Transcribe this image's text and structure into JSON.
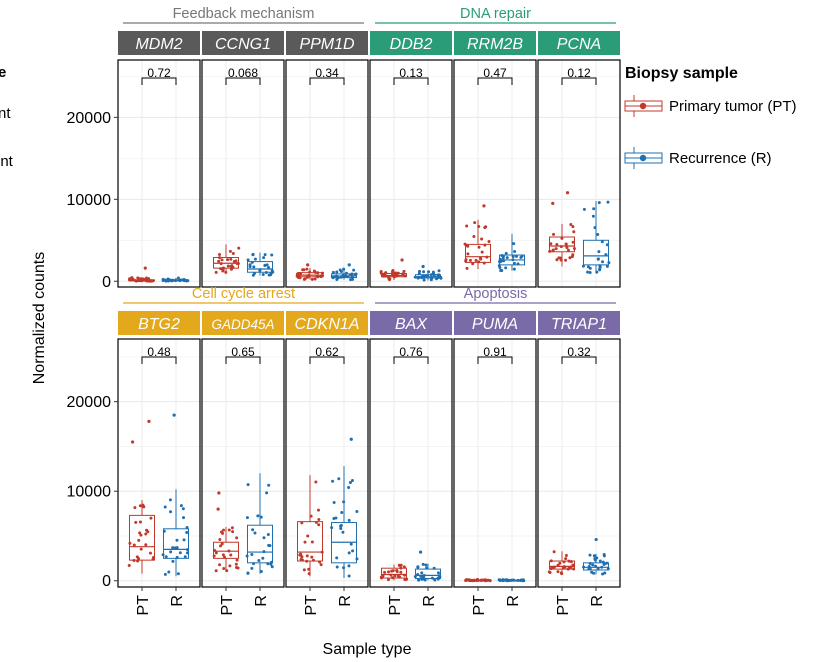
{
  "chart_data": {
    "type": "box",
    "xlabel": "Sample type",
    "ylabel": "Normalized counts",
    "ylim": [
      -700,
      27000
    ],
    "y_ticks": [
      0,
      10000,
      20000
    ],
    "y_tick_labels": [
      "0",
      "10000",
      "20000"
    ],
    "x_categories": [
      "PT",
      "R"
    ],
    "legend": {
      "title": "Biopsy sample",
      "placement": "right",
      "entries": [
        {
          "label": "Primary tumor (PT)",
          "color": "#c0392b"
        },
        {
          "label": "Recurrence (R)",
          "color": "#1f6fb0"
        }
      ]
    },
    "left_legend_fragments": [
      "e",
      "nt",
      "ent"
    ],
    "groups": [
      {
        "label": "Feedback mechanism",
        "color": "#777777",
        "row": 0,
        "first": 0,
        "last": 2
      },
      {
        "label": "DNA repair",
        "color": "#2a9c78",
        "row": 0,
        "first": 3,
        "last": 5
      },
      {
        "label": "Cell cycle arrest",
        "color": "#e3a81b",
        "row": 1,
        "first": 0,
        "last": 2
      },
      {
        "label": "Apoptosis",
        "color": "#7b6aa8",
        "row": 1,
        "first": 3,
        "last": 5
      }
    ],
    "panels": [
      {
        "gene": "MDM2",
        "color": "#5a5a5a",
        "row": 0,
        "col": 0,
        "p": "0.72",
        "PT": {
          "min": 0,
          "q1": 40,
          "median": 100,
          "q3": 170,
          "max": 500,
          "outliers": [
            1600
          ]
        },
        "R": {
          "min": 0,
          "q1": 50,
          "median": 100,
          "q3": 160,
          "max": 400,
          "outliers": []
        }
      },
      {
        "gene": "CCNG1",
        "color": "#5a5a5a",
        "row": 0,
        "col": 1,
        "p": "0.068",
        "PT": {
          "min": 1000,
          "q1": 1600,
          "median": 2200,
          "q3": 2900,
          "max": 4500,
          "outliers": []
        },
        "R": {
          "min": 700,
          "q1": 1100,
          "median": 1500,
          "q3": 2400,
          "max": 3500,
          "outliers": []
        }
      },
      {
        "gene": "PPM1D",
        "color": "#5a5a5a",
        "row": 0,
        "col": 2,
        "p": "0.34",
        "PT": {
          "min": 200,
          "q1": 550,
          "median": 750,
          "q3": 1050,
          "max": 1600,
          "outliers": [
            2000
          ]
        },
        "R": {
          "min": 200,
          "q1": 450,
          "median": 650,
          "q3": 900,
          "max": 1500,
          "outliers": [
            2000
          ]
        }
      },
      {
        "gene": "DDB2",
        "color": "#2a9c78",
        "row": 0,
        "col": 3,
        "p": "0.13",
        "PT": {
          "min": 150,
          "q1": 550,
          "median": 700,
          "q3": 950,
          "max": 1400,
          "outliers": [
            2600
          ]
        },
        "R": {
          "min": 100,
          "q1": 400,
          "median": 550,
          "q3": 800,
          "max": 1300,
          "outliers": [
            1800
          ]
        }
      },
      {
        "gene": "RRM2B",
        "color": "#2a9c78",
        "row": 0,
        "col": 4,
        "p": "0.47",
        "PT": {
          "min": 1500,
          "q1": 2300,
          "median": 3000,
          "q3": 4500,
          "max": 7500,
          "outliers": [
            9200
          ]
        },
        "R": {
          "min": 1300,
          "q1": 2000,
          "median": 2600,
          "q3": 3200,
          "max": 5800,
          "outliers": []
        }
      },
      {
        "gene": "PCNA",
        "color": "#2a9c78",
        "row": 0,
        "col": 5,
        "p": "0.12",
        "PT": {
          "min": 1800,
          "q1": 3600,
          "median": 4300,
          "q3": 5400,
          "max": 7000,
          "outliers": [
            9500,
            10800
          ]
        },
        "R": {
          "min": 1000,
          "q1": 2000,
          "median": 3100,
          "q3": 5000,
          "max": 9800,
          "outliers": []
        }
      },
      {
        "gene": "BTG2",
        "color": "#e3a81b",
        "row": 1,
        "col": 0,
        "p": "0.48",
        "PT": {
          "min": 800,
          "q1": 2300,
          "median": 3800,
          "q3": 7300,
          "max": 9000,
          "outliers": [
            15500,
            17800
          ]
        },
        "R": {
          "min": 500,
          "q1": 2500,
          "median": 3500,
          "q3": 5800,
          "max": 10200,
          "outliers": [
            18500
          ]
        }
      },
      {
        "gene": "GADD45A",
        "color": "#e3a81b",
        "row": 1,
        "col": 1,
        "p": "0.65",
        "PT": {
          "min": 1000,
          "q1": 2500,
          "median": 3300,
          "q3": 4300,
          "max": 6000,
          "outliers": [
            8000,
            9800
          ]
        },
        "R": {
          "min": 800,
          "q1": 2000,
          "median": 3200,
          "q3": 6200,
          "max": 12000,
          "outliers": []
        }
      },
      {
        "gene": "CDKN1A",
        "color": "#e3a81b",
        "row": 1,
        "col": 2,
        "p": "0.62",
        "PT": {
          "min": 500,
          "q1": 2200,
          "median": 3200,
          "q3": 6600,
          "max": 11800,
          "outliers": []
        },
        "R": {
          "min": 300,
          "q1": 2000,
          "median": 4300,
          "q3": 6500,
          "max": 12800,
          "outliers": [
            15800
          ]
        }
      },
      {
        "gene": "BAX",
        "color": "#7b6aa8",
        "row": 1,
        "col": 3,
        "p": "0.76",
        "PT": {
          "min": 50,
          "q1": 300,
          "median": 700,
          "q3": 1400,
          "max": 1800,
          "outliers": []
        },
        "R": {
          "min": 50,
          "q1": 250,
          "median": 600,
          "q3": 1300,
          "max": 1900,
          "outliers": [
            3200
          ]
        }
      },
      {
        "gene": "PUMA",
        "color": "#7b6aa8",
        "row": 1,
        "col": 4,
        "p": "0.91",
        "PT": {
          "min": 0,
          "q1": 20,
          "median": 40,
          "q3": 70,
          "max": 150,
          "outliers": []
        },
        "R": {
          "min": 0,
          "q1": 20,
          "median": 40,
          "q3": 70,
          "max": 150,
          "outliers": []
        }
      },
      {
        "gene": "TRIAP1",
        "color": "#7b6aa8",
        "row": 1,
        "col": 5,
        "p": "0.32",
        "PT": {
          "min": 700,
          "q1": 1300,
          "median": 1600,
          "q3": 2200,
          "max": 3300,
          "outliers": []
        },
        "R": {
          "min": 700,
          "q1": 1200,
          "median": 1500,
          "q3": 2000,
          "max": 3000,
          "outliers": [
            4600
          ]
        }
      }
    ]
  }
}
